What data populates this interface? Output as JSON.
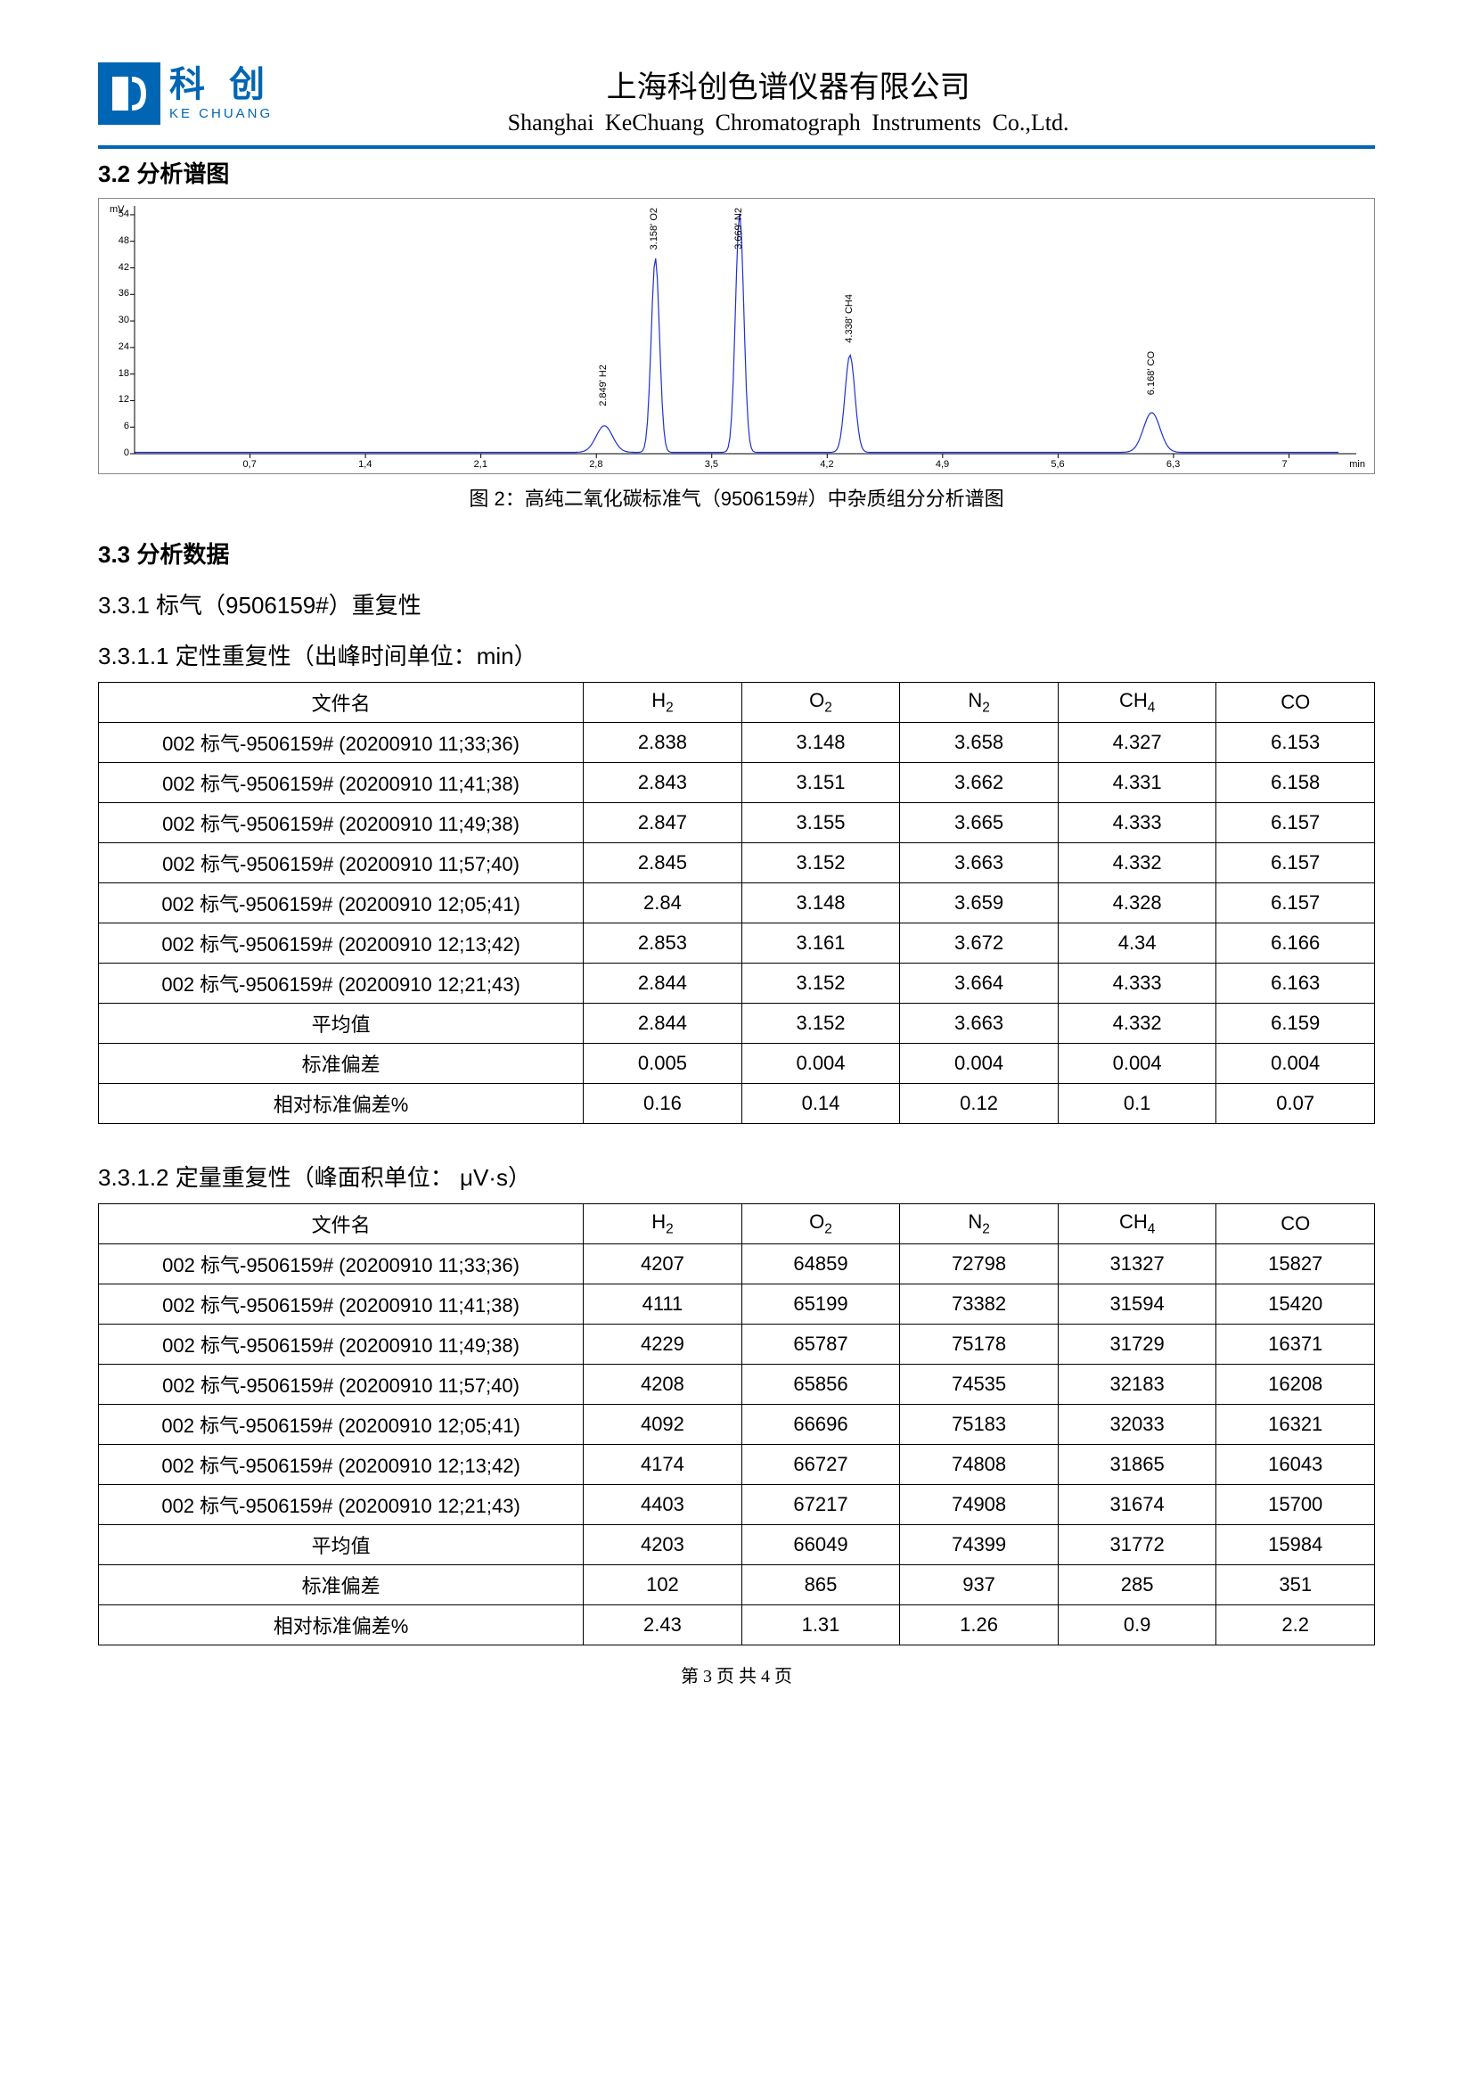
{
  "header": {
    "logo_cn": "科 创",
    "logo_en": "KE CHUANG",
    "company_cn": "上海科创色谱仪器有限公司",
    "company_en": "Shanghai  KeChuang  Chromatograph  Instruments  Co.,Ltd."
  },
  "section_3_2": {
    "title": "3.2 分析谱图",
    "caption": "图 2：高纯二氧化碳标准气（9506159#）中杂质组分分析谱图"
  },
  "chromatogram": {
    "type": "line",
    "y_unit": "mV",
    "x_unit": "min",
    "y_ticks": [
      "0",
      "6",
      "12",
      "18",
      "24",
      "30",
      "36",
      "42",
      "48",
      "54"
    ],
    "x_ticks": [
      "0,7",
      "1,4",
      "2,1",
      "2,8",
      "3,5",
      "4,2",
      "4,9",
      "5,6",
      "6,3",
      "7"
    ],
    "x_range": [
      0,
      7.3
    ],
    "y_range": [
      0,
      56
    ],
    "line_color": "#2030d0",
    "axis_color": "#000000",
    "border_color": "#888888",
    "background": "#ffffff",
    "tick_len": 5,
    "peaks": [
      {
        "rt": 2.849,
        "height": 6,
        "label": "2.849' H2"
      },
      {
        "rt": 3.158,
        "height": 44,
        "label": "3.158' O2"
      },
      {
        "rt": 3.669,
        "height": 54,
        "label": "3.669' N2"
      },
      {
        "rt": 4.338,
        "height": 22,
        "label": "4.338' CH4"
      },
      {
        "rt": 6.168,
        "height": 9,
        "label": "6.168' CO"
      }
    ]
  },
  "section_3_3": {
    "title": "3.3 分析数据",
    "sub_3_3_1": "3.3.1 标气（9506159#）重复性",
    "sub_3_3_1_1": "3.3.1.1 定性重复性（出峰时间单位：min）",
    "sub_3_3_1_2": "3.3.1.2 定量重复性（峰面积单位： μV·s）"
  },
  "table_headers": {
    "file": "文件名",
    "H2": "H₂",
    "O2": "O₂",
    "N2": "N₂",
    "CH4": "CH₄",
    "CO": "CO",
    "avg": "平均值",
    "std": "标准偏差",
    "rsd": "相对标准偏差%"
  },
  "table1": {
    "rows": [
      {
        "file": "002  标气-9506159# (20200910 11;33;36)",
        "H2": "2.838",
        "O2": "3.148",
        "N2": "3.658",
        "CH4": "4.327",
        "CO": "6.153"
      },
      {
        "file": "002  标气-9506159# (20200910 11;41;38)",
        "H2": "2.843",
        "O2": "3.151",
        "N2": "3.662",
        "CH4": "4.331",
        "CO": "6.158"
      },
      {
        "file": "002  标气-9506159# (20200910 11;49;38)",
        "H2": "2.847",
        "O2": "3.155",
        "N2": "3.665",
        "CH4": "4.333",
        "CO": "6.157"
      },
      {
        "file": "002  标气-9506159# (20200910 11;57;40)",
        "H2": "2.845",
        "O2": "3.152",
        "N2": "3.663",
        "CH4": "4.332",
        "CO": "6.157"
      },
      {
        "file": "002  标气-9506159# (20200910 12;05;41)",
        "H2": "2.84",
        "O2": "3.148",
        "N2": "3.659",
        "CH4": "4.328",
        "CO": "6.157"
      },
      {
        "file": "002  标气-9506159# (20200910 12;13;42)",
        "H2": "2.853",
        "O2": "3.161",
        "N2": "3.672",
        "CH4": "4.34",
        "CO": "6.166"
      },
      {
        "file": "002  标气-9506159# (20200910 12;21;43)",
        "H2": "2.844",
        "O2": "3.152",
        "N2": "3.664",
        "CH4": "4.333",
        "CO": "6.163"
      }
    ],
    "avg": {
      "H2": "2.844",
      "O2": "3.152",
      "N2": "3.663",
      "CH4": "4.332",
      "CO": "6.159"
    },
    "std": {
      "H2": "0.005",
      "O2": "0.004",
      "N2": "0.004",
      "CH4": "0.004",
      "CO": "0.004"
    },
    "rsd": {
      "H2": "0.16",
      "O2": "0.14",
      "N2": "0.12",
      "CH4": "0.1",
      "CO": "0.07"
    }
  },
  "table2": {
    "rows": [
      {
        "file": "002  标气-9506159# (20200910 11;33;36)",
        "H2": "4207",
        "O2": "64859",
        "N2": "72798",
        "CH4": "31327",
        "CO": "15827"
      },
      {
        "file": "002  标气-9506159# (20200910 11;41;38)",
        "H2": "4111",
        "O2": "65199",
        "N2": "73382",
        "CH4": "31594",
        "CO": "15420"
      },
      {
        "file": "002  标气-9506159# (20200910 11;49;38)",
        "H2": "4229",
        "O2": "65787",
        "N2": "75178",
        "CH4": "31729",
        "CO": "16371"
      },
      {
        "file": "002  标气-9506159# (20200910 11;57;40)",
        "H2": "4208",
        "O2": "65856",
        "N2": "74535",
        "CH4": "32183",
        "CO": "16208"
      },
      {
        "file": "002  标气-9506159# (20200910 12;05;41)",
        "H2": "4092",
        "O2": "66696",
        "N2": "75183",
        "CH4": "32033",
        "CO": "16321"
      },
      {
        "file": "002  标气-9506159# (20200910 12;13;42)",
        "H2": "4174",
        "O2": "66727",
        "N2": "74808",
        "CH4": "31865",
        "CO": "16043"
      },
      {
        "file": "002  标气-9506159# (20200910 12;21;43)",
        "H2": "4403",
        "O2": "67217",
        "N2": "74908",
        "CH4": "31674",
        "CO": "15700"
      }
    ],
    "avg": {
      "H2": "4203",
      "O2": "66049",
      "N2": "74399",
      "CH4": "31772",
      "CO": "15984"
    },
    "std": {
      "H2": "102",
      "O2": "865",
      "N2": "937",
      "CH4": "285",
      "CO": "351"
    },
    "rsd": {
      "H2": "2.43",
      "O2": "1.31",
      "N2": "1.26",
      "CH4": "0.9",
      "CO": "2.2"
    }
  },
  "footer": "第 3 页 共 4 页"
}
